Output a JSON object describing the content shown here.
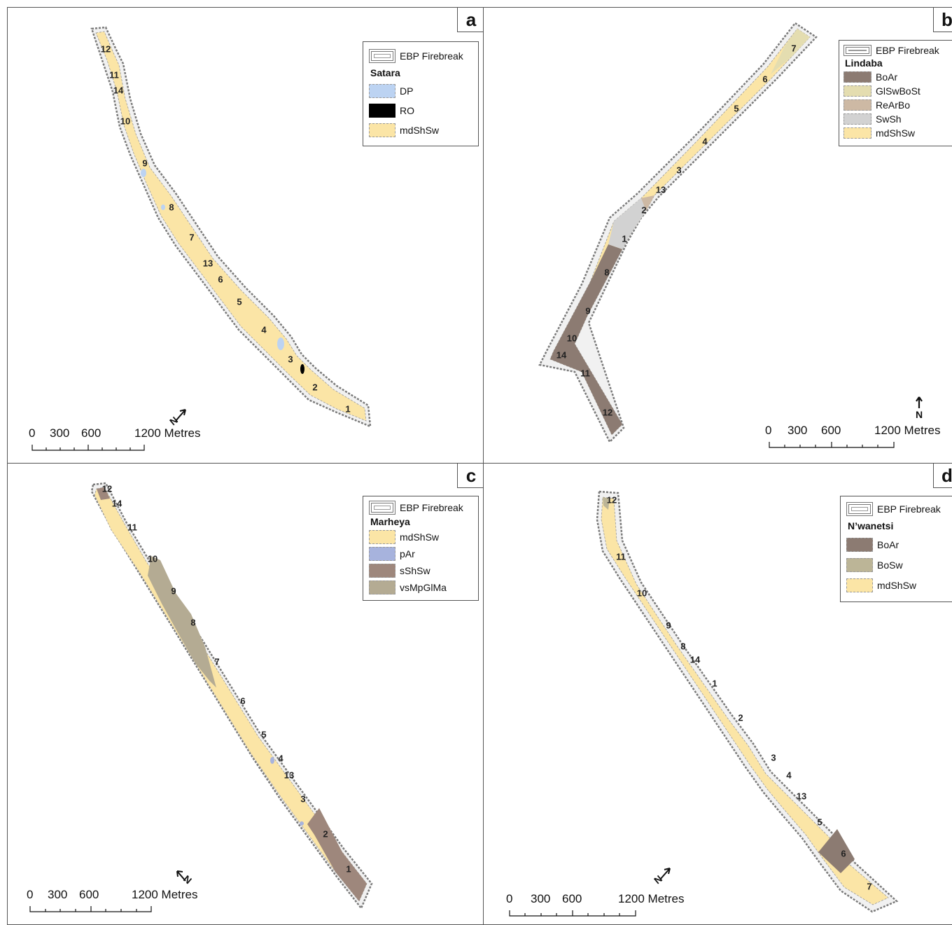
{
  "legend_colors": {
    "firebreak": "#ffffff",
    "mdShSw": "#fbe5a6",
    "DP": "#bcd3f2",
    "RO": "#000000",
    "BoAr": "#8c7b72",
    "GlSwBoSt": "#e4ddb0",
    "ReArBo": "#cdb9a4",
    "SwSh": "#d2d2d2",
    "pAr": "#a7b3dd",
    "sShSw": "#9e877c",
    "vsMpGlMa": "#b4ab93",
    "BoSw": "#bcb597"
  },
  "panels": [
    {
      "label": "a",
      "legend": {
        "firebreak_label": "EBP Firebreak",
        "site": "Satara",
        "items": [
          {
            "label": "DP",
            "color": "#bcd3f2"
          },
          {
            "label": "RO",
            "color": "#000000"
          },
          {
            "label": "mdShSw",
            "color": "#fbe5a6"
          }
        ]
      },
      "segment_numbers": [
        "12",
        "11",
        "14",
        "10",
        "9",
        "8",
        "7",
        "13",
        "6",
        "5",
        "4",
        "3",
        "2",
        "1"
      ],
      "scale": {
        "ticks": [
          "0",
          "300",
          "600",
          "1200 Metres"
        ]
      },
      "north": "N"
    },
    {
      "label": "b",
      "legend": {
        "firebreak_label": "EBP Firebreak",
        "site": "Lindaba",
        "items": [
          {
            "label": "BoAr",
            "color": "#8c7b72"
          },
          {
            "label": "GlSwBoSt",
            "color": "#e4ddb0"
          },
          {
            "label": "ReArBo",
            "color": "#cdb9a4"
          },
          {
            "label": "SwSh",
            "color": "#d2d2d2"
          },
          {
            "label": "mdShSw",
            "color": "#fbe5a6"
          }
        ]
      },
      "segment_numbers": [
        "7",
        "6",
        "5",
        "4",
        "3",
        "13",
        "2",
        "1",
        "8",
        "9",
        "10",
        "14",
        "11",
        "12"
      ],
      "scale": {
        "ticks": [
          "0",
          "300",
          "600",
          "1200 Metres"
        ]
      },
      "north": "N"
    },
    {
      "label": "c",
      "legend": {
        "firebreak_label": "EBP Firebreak",
        "site": "Marheya",
        "items": [
          {
            "label": "mdShSw",
            "color": "#fbe5a6"
          },
          {
            "label": "pAr",
            "color": "#a7b3dd"
          },
          {
            "label": "sShSw",
            "color": "#9e877c"
          },
          {
            "label": "vsMpGlMa",
            "color": "#b4ab93"
          }
        ]
      },
      "segment_numbers": [
        "12",
        "14",
        "11",
        "10",
        "9",
        "8",
        "7",
        "6",
        "5",
        "4",
        "13",
        "3",
        "2",
        "1"
      ],
      "scale": {
        "ticks": [
          "0",
          "300",
          "600",
          "1200 Metres"
        ]
      },
      "north": "N"
    },
    {
      "label": "d",
      "legend": {
        "firebreak_label": "EBP Firebreak",
        "site": "N’wanetsi",
        "items": [
          {
            "label": "BoAr",
            "color": "#8c7b72"
          },
          {
            "label": "BoSw",
            "color": "#bcb597"
          },
          {
            "label": "mdShSw",
            "color": "#fbe5a6"
          }
        ]
      },
      "segment_numbers": [
        "12",
        "11",
        "10",
        "9",
        "8",
        "14",
        "1",
        "2",
        "3",
        "4",
        "13",
        "5",
        "6",
        "7"
      ],
      "scale": {
        "ticks": [
          "0",
          "300",
          "600",
          "1200 Metres"
        ]
      },
      "north": "N"
    }
  ]
}
